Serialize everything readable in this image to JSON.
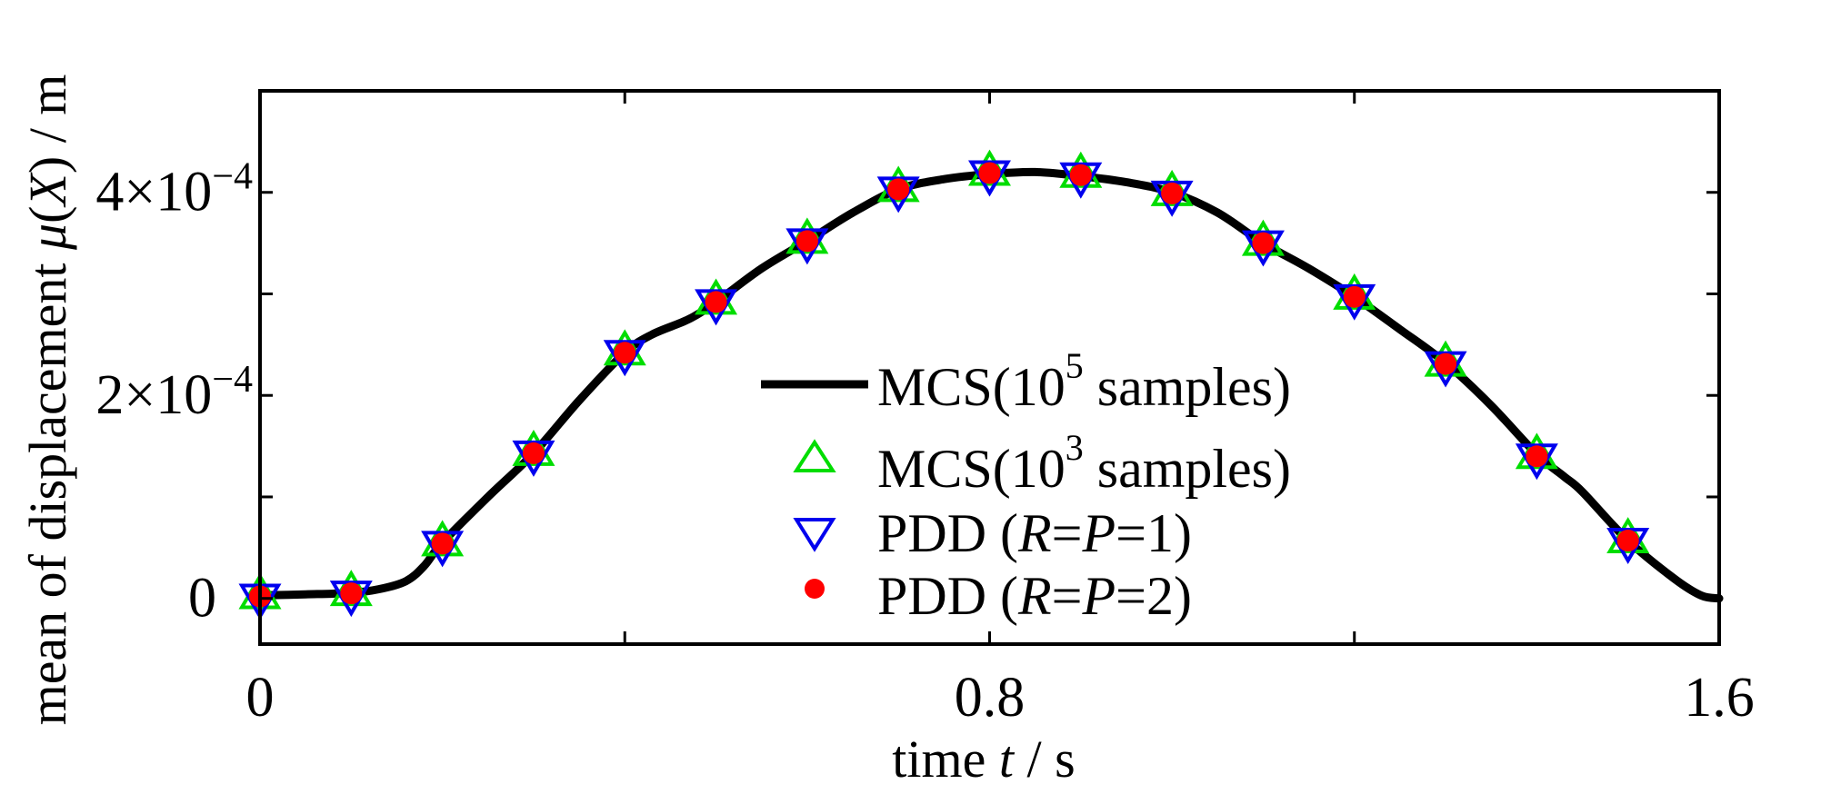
{
  "chart_data": {
    "type": "line",
    "title": "",
    "xlabel": {
      "prefix": "time ",
      "var": "t",
      "suffix": " / s"
    },
    "ylabel": {
      "prefix": "mean of displacement ",
      "var1": "μ",
      "open": "(",
      "var2": "X",
      "close": ") / m"
    },
    "xlim": [
      0,
      1.6
    ],
    "ylim": [
      -4.5e-05,
      0.0005
    ],
    "grid": false,
    "x_ticks": [
      0,
      0.4,
      0.8,
      1.2,
      1.6
    ],
    "x_tick_labels": [
      {
        "value": 0,
        "label": "0"
      },
      {
        "value": 0.8,
        "label": "0.8"
      },
      {
        "value": 1.6,
        "label": "1.6"
      }
    ],
    "y_ticks": [
      0,
      0.0001,
      0.0002,
      0.0003,
      0.0004
    ],
    "y_tick_labels": [
      {
        "value": 0,
        "mant": "0",
        "exp": ""
      },
      {
        "value": 0.0002,
        "mant": "2×10",
        "exp": "−4"
      },
      {
        "value": 0.0004,
        "mant": "4×10",
        "exp": "−4"
      }
    ],
    "legend_position": "center-right",
    "series": [
      {
        "name": "MCS(10^5 samples)",
        "legend": {
          "pre": "MCS(10",
          "sup": "5",
          "post": " samples)"
        },
        "style": "line",
        "color": "#000000",
        "x": [
          0,
          0.05,
          0.1,
          0.13,
          0.16,
          0.18,
          0.2,
          0.25,
          0.3,
          0.35,
          0.4,
          0.43,
          0.47,
          0.5,
          0.55,
          0.6,
          0.65,
          0.7,
          0.75,
          0.8,
          0.85,
          0.9,
          0.95,
          1.0,
          1.05,
          1.1,
          1.15,
          1.2,
          1.25,
          1.3,
          1.35,
          1.4,
          1.43,
          1.45,
          1.5,
          1.55,
          1.58,
          1.6
        ],
        "y": [
          3e-06,
          4e-06,
          5.5e-06,
          9e-06,
          1.7e-05,
          3.2e-05,
          5.5e-05,
          0.0001,
          0.000143,
          0.000195,
          0.000242,
          0.00026,
          0.000275,
          0.000292,
          0.000325,
          0.000352,
          0.00038,
          0.000403,
          0.000413,
          0.000418,
          0.00042,
          0.000416,
          0.00041,
          0.0004,
          0.00038,
          0.00035,
          0.000325,
          0.000297,
          0.000265,
          0.000232,
          0.00019,
          0.000142,
          0.00012,
          0.000105,
          5.7e-05,
          2e-05,
          3e-06,
          0.0
        ]
      },
      {
        "name": "MCS(10^3 samples)",
        "legend": {
          "pre": "MCS(10",
          "sup": "3",
          "post": " samples)"
        },
        "style": "marker-triangle-up",
        "color": "#00dd00",
        "x": [
          0,
          0.1,
          0.2,
          0.3,
          0.4,
          0.5,
          0.6,
          0.7,
          0.8,
          0.9,
          1.0,
          1.1,
          1.2,
          1.3,
          1.4,
          1.5
        ],
        "y": [
          2e-06,
          5e-06,
          5.4e-05,
          0.000143,
          0.000242,
          0.000292,
          0.000352,
          0.000403,
          0.000419,
          0.000417,
          0.000399,
          0.00035,
          0.000297,
          0.000231,
          0.00014,
          5.7e-05
        ]
      },
      {
        "name": "PDD (R=P=1)",
        "legend": {
          "pre": "PDD (",
          "i1": "R",
          "eq1": "=",
          "i2": "P",
          "post": "=1)"
        },
        "style": "marker-triangle-down",
        "color": "#0000ee",
        "x": [
          0,
          0.1,
          0.2,
          0.3,
          0.4,
          0.5,
          0.6,
          0.7,
          0.8,
          0.9,
          1.0,
          1.1,
          1.2,
          1.3,
          1.4,
          1.5
        ],
        "y": [
          2e-06,
          5e-06,
          5.4e-05,
          0.000143,
          0.000242,
          0.000292,
          0.000352,
          0.000403,
          0.000419,
          0.000417,
          0.000399,
          0.00035,
          0.000297,
          0.000231,
          0.00014,
          5.7e-05
        ]
      },
      {
        "name": "PDD (R=P=2)",
        "legend": {
          "pre": "PDD (",
          "i1": "R",
          "eq1": "=",
          "i2": "P",
          "post": "=2)"
        },
        "style": "marker-dot",
        "color": "#ff0000",
        "x": [
          0,
          0.1,
          0.2,
          0.3,
          0.4,
          0.5,
          0.6,
          0.7,
          0.8,
          0.9,
          1.0,
          1.1,
          1.2,
          1.3,
          1.4,
          1.5
        ],
        "y": [
          2e-06,
          5e-06,
          5.4e-05,
          0.000143,
          0.000242,
          0.000292,
          0.000352,
          0.000403,
          0.000419,
          0.000417,
          0.000399,
          0.00035,
          0.000297,
          0.000231,
          0.00014,
          5.7e-05
        ]
      }
    ]
  }
}
